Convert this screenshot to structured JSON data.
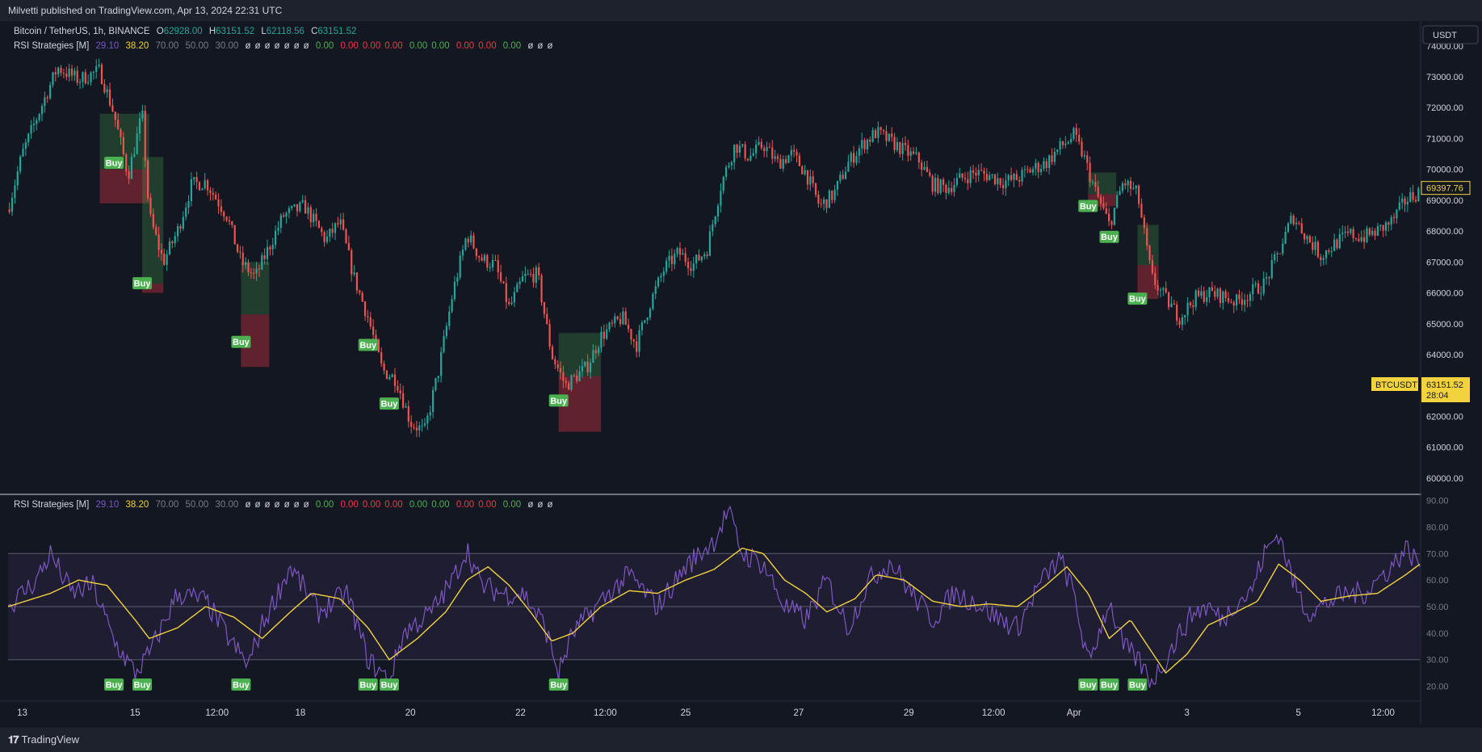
{
  "header": {
    "published": "Milvetti published on TradingView.com, Apr 13, 2024 22:31 UTC"
  },
  "legend": {
    "symbol": "Bitcoin / TetherUS, 1h, BINANCE",
    "open_label": "O",
    "open": "62928.00",
    "high_label": "H",
    "high": "63151.52",
    "low_label": "L",
    "low": "62118.56",
    "close_label": "C",
    "close": "63151.52"
  },
  "indicator": {
    "name": "RSI Strategies [M]",
    "v1": "29.10",
    "v2": "38.20",
    "v3": "70.00",
    "v4": "50.00",
    "v5": "30.00",
    "empty_marks": [
      "ø",
      "ø",
      "ø",
      "ø",
      "ø",
      "ø",
      "ø"
    ],
    "g1": "0.00",
    "reds": [
      "0.00",
      "0.00",
      "0.00"
    ],
    "greens": [
      "0.00",
      "0.00"
    ],
    "reds2": [
      "0.00",
      "0.00"
    ],
    "g2": "0.00",
    "tail_marks": [
      "ø",
      "ø",
      "ø"
    ]
  },
  "colors": {
    "up": "#26a69a",
    "down": "#ef5350",
    "rsi": "#7e57c2",
    "ma": "#f2d23d",
    "buy": "#4caf50",
    "price_tag": "#f2d23d"
  },
  "price_axis": {
    "currency": "USDT",
    "labels": [
      "74000.00",
      "73000.00",
      "72000.00",
      "71000.00",
      "70000.00",
      "69000.00",
      "68000.00",
      "67000.00",
      "66000.00",
      "65000.00",
      "64000.00",
      "63000.00",
      "62000.00",
      "61000.00",
      "60000.00"
    ],
    "last_high_tag": "69397.76",
    "symbol_tag": "BTCUSDT",
    "current_price": "63151.52",
    "countdown": "28:04"
  },
  "rsi_axis": {
    "labels": [
      "90.00",
      "80.00",
      "70.00",
      "60.00",
      "50.00",
      "40.00",
      "30.00",
      "20.00"
    ]
  },
  "time_axis": {
    "labels": [
      "13",
      "15",
      "12:00",
      "18",
      "20",
      "22",
      "12:00",
      "25",
      "27",
      "29",
      "12:00",
      "Apr",
      "3",
      "5",
      "12:00"
    ]
  },
  "buy_label": "Buy",
  "footer": {
    "brand": "TradingView"
  },
  "chart_data": {
    "type": "candlestick",
    "symbol": "BTCUSDT",
    "interval": "1h",
    "price_range": [
      59500,
      74700
    ],
    "price_anchors": [
      {
        "x": 0.0,
        "price": 68700
      },
      {
        "x": 0.01,
        "price": 70500
      },
      {
        "x": 0.025,
        "price": 72200
      },
      {
        "x": 0.035,
        "price": 73300
      },
      {
        "x": 0.05,
        "price": 72900
      },
      {
        "x": 0.065,
        "price": 73200
      },
      {
        "x": 0.075,
        "price": 71800
      },
      {
        "x": 0.085,
        "price": 69800
      },
      {
        "x": 0.095,
        "price": 71800
      },
      {
        "x": 0.1,
        "price": 68500
      },
      {
        "x": 0.11,
        "price": 67000
      },
      {
        "x": 0.12,
        "price": 68000
      },
      {
        "x": 0.13,
        "price": 69500
      },
      {
        "x": 0.14,
        "price": 69600
      },
      {
        "x": 0.155,
        "price": 68500
      },
      {
        "x": 0.165,
        "price": 67000
      },
      {
        "x": 0.175,
        "price": 66500
      },
      {
        "x": 0.185,
        "price": 67500
      },
      {
        "x": 0.195,
        "price": 68500
      },
      {
        "x": 0.21,
        "price": 68800
      },
      {
        "x": 0.225,
        "price": 67700
      },
      {
        "x": 0.235,
        "price": 68300
      },
      {
        "x": 0.245,
        "price": 66500
      },
      {
        "x": 0.255,
        "price": 65200
      },
      {
        "x": 0.265,
        "price": 63500
      },
      {
        "x": 0.275,
        "price": 63200
      },
      {
        "x": 0.285,
        "price": 61800
      },
      {
        "x": 0.295,
        "price": 61500
      },
      {
        "x": 0.305,
        "price": 63500
      },
      {
        "x": 0.315,
        "price": 66000
      },
      {
        "x": 0.325,
        "price": 67900
      },
      {
        "x": 0.335,
        "price": 67100
      },
      {
        "x": 0.345,
        "price": 66900
      },
      {
        "x": 0.355,
        "price": 65500
      },
      {
        "x": 0.365,
        "price": 66500
      },
      {
        "x": 0.375,
        "price": 66600
      },
      {
        "x": 0.385,
        "price": 64000
      },
      {
        "x": 0.395,
        "price": 63000
      },
      {
        "x": 0.41,
        "price": 63600
      },
      {
        "x": 0.42,
        "price": 64600
      },
      {
        "x": 0.435,
        "price": 65200
      },
      {
        "x": 0.445,
        "price": 64300
      },
      {
        "x": 0.455,
        "price": 65700
      },
      {
        "x": 0.465,
        "price": 66800
      },
      {
        "x": 0.475,
        "price": 67300
      },
      {
        "x": 0.485,
        "price": 66900
      },
      {
        "x": 0.495,
        "price": 67400
      },
      {
        "x": 0.505,
        "price": 69500
      },
      {
        "x": 0.515,
        "price": 70800
      },
      {
        "x": 0.525,
        "price": 70400
      },
      {
        "x": 0.535,
        "price": 70800
      },
      {
        "x": 0.545,
        "price": 70200
      },
      {
        "x": 0.555,
        "price": 70500
      },
      {
        "x": 0.565,
        "price": 69900
      },
      {
        "x": 0.575,
        "price": 68800
      },
      {
        "x": 0.585,
        "price": 69200
      },
      {
        "x": 0.595,
        "price": 70200
      },
      {
        "x": 0.605,
        "price": 70800
      },
      {
        "x": 0.615,
        "price": 71200
      },
      {
        "x": 0.625,
        "price": 70900
      },
      {
        "x": 0.635,
        "price": 70600
      },
      {
        "x": 0.645,
        "price": 70300
      },
      {
        "x": 0.655,
        "price": 69500
      },
      {
        "x": 0.665,
        "price": 69400
      },
      {
        "x": 0.675,
        "price": 69700
      },
      {
        "x": 0.685,
        "price": 69900
      },
      {
        "x": 0.695,
        "price": 69800
      },
      {
        "x": 0.705,
        "price": 69600
      },
      {
        "x": 0.715,
        "price": 69700
      },
      {
        "x": 0.725,
        "price": 70000
      },
      {
        "x": 0.735,
        "price": 70200
      },
      {
        "x": 0.745,
        "price": 70700
      },
      {
        "x": 0.755,
        "price": 71100
      },
      {
        "x": 0.762,
        "price": 70400
      },
      {
        "x": 0.77,
        "price": 69300
      },
      {
        "x": 0.78,
        "price": 68200
      },
      {
        "x": 0.79,
        "price": 69600
      },
      {
        "x": 0.8,
        "price": 69200
      },
      {
        "x": 0.81,
        "price": 66500
      },
      {
        "x": 0.82,
        "price": 65800
      },
      {
        "x": 0.83,
        "price": 65200
      },
      {
        "x": 0.84,
        "price": 65800
      },
      {
        "x": 0.85,
        "price": 66000
      },
      {
        "x": 0.86,
        "price": 65900
      },
      {
        "x": 0.87,
        "price": 65700
      },
      {
        "x": 0.88,
        "price": 66000
      },
      {
        "x": 0.89,
        "price": 66300
      },
      {
        "x": 0.9,
        "price": 67300
      },
      {
        "x": 0.91,
        "price": 68500
      },
      {
        "x": 0.92,
        "price": 67800
      },
      {
        "x": 0.93,
        "price": 67200
      },
      {
        "x": 0.94,
        "price": 67600
      },
      {
        "x": 0.95,
        "price": 67900
      },
      {
        "x": 0.96,
        "price": 67800
      },
      {
        "x": 0.97,
        "price": 68000
      },
      {
        "x": 0.98,
        "price": 68300
      },
      {
        "x": 0.99,
        "price": 69000
      },
      {
        "x": 1.0,
        "price": 69300
      }
    ],
    "buy_signals_price": [
      {
        "x": 0.075,
        "price": 70200
      },
      {
        "x": 0.095,
        "price": 66300
      },
      {
        "x": 0.165,
        "price": 64400
      },
      {
        "x": 0.255,
        "price": 64300
      },
      {
        "x": 0.27,
        "price": 62400
      },
      {
        "x": 0.39,
        "price": 62500
      },
      {
        "x": 0.765,
        "price": 68800
      },
      {
        "x": 0.78,
        "price": 67800
      },
      {
        "x": 0.8,
        "price": 65800
      }
    ],
    "position_zones": [
      {
        "x0": 0.065,
        "x1": 0.1,
        "entry": 70000,
        "target": 71800,
        "stop": 68900
      },
      {
        "x0": 0.095,
        "x1": 0.11,
        "entry": 66300,
        "target": 70400,
        "stop": 66000
      },
      {
        "x0": 0.165,
        "x1": 0.185,
        "entry": 65300,
        "target": 67000,
        "stop": 63600
      },
      {
        "x0": 0.39,
        "x1": 0.42,
        "entry": 63300,
        "target": 64700,
        "stop": 61500
      },
      {
        "x0": 0.765,
        "x1": 0.785,
        "entry": 69200,
        "target": 69900,
        "stop": 68800
      },
      {
        "x0": 0.8,
        "x1": 0.815,
        "entry": 66900,
        "target": 68200,
        "stop": 65800
      }
    ],
    "rsi": {
      "range": [
        15,
        92
      ],
      "levels": [
        70,
        50,
        30
      ],
      "rsi_anchors": [
        {
          "x": 0.0,
          "v": 50
        },
        {
          "x": 0.02,
          "v": 60
        },
        {
          "x": 0.03,
          "v": 70
        },
        {
          "x": 0.045,
          "v": 55
        },
        {
          "x": 0.06,
          "v": 58
        },
        {
          "x": 0.075,
          "v": 37
        },
        {
          "x": 0.09,
          "v": 25
        },
        {
          "x": 0.1,
          "v": 32
        },
        {
          "x": 0.12,
          "v": 55
        },
        {
          "x": 0.14,
          "v": 52
        },
        {
          "x": 0.16,
          "v": 35
        },
        {
          "x": 0.17,
          "v": 28
        },
        {
          "x": 0.18,
          "v": 43
        },
        {
          "x": 0.2,
          "v": 65
        },
        {
          "x": 0.22,
          "v": 48
        },
        {
          "x": 0.24,
          "v": 55
        },
        {
          "x": 0.255,
          "v": 30
        },
        {
          "x": 0.27,
          "v": 22
        },
        {
          "x": 0.28,
          "v": 40
        },
        {
          "x": 0.3,
          "v": 48
        },
        {
          "x": 0.315,
          "v": 60
        },
        {
          "x": 0.325,
          "v": 72
        },
        {
          "x": 0.335,
          "v": 58
        },
        {
          "x": 0.35,
          "v": 55
        },
        {
          "x": 0.365,
          "v": 55
        },
        {
          "x": 0.38,
          "v": 43
        },
        {
          "x": 0.39,
          "v": 25
        },
        {
          "x": 0.4,
          "v": 40
        },
        {
          "x": 0.42,
          "v": 52
        },
        {
          "x": 0.44,
          "v": 62
        },
        {
          "x": 0.46,
          "v": 50
        },
        {
          "x": 0.48,
          "v": 65
        },
        {
          "x": 0.5,
          "v": 75
        },
        {
          "x": 0.51,
          "v": 86
        },
        {
          "x": 0.52,
          "v": 70
        },
        {
          "x": 0.535,
          "v": 66
        },
        {
          "x": 0.55,
          "v": 50
        },
        {
          "x": 0.565,
          "v": 45
        },
        {
          "x": 0.58,
          "v": 60
        },
        {
          "x": 0.595,
          "v": 42
        },
        {
          "x": 0.61,
          "v": 60
        },
        {
          "x": 0.625,
          "v": 67
        },
        {
          "x": 0.64,
          "v": 55
        },
        {
          "x": 0.655,
          "v": 45
        },
        {
          "x": 0.67,
          "v": 55
        },
        {
          "x": 0.685,
          "v": 52
        },
        {
          "x": 0.7,
          "v": 46
        },
        {
          "x": 0.715,
          "v": 42
        },
        {
          "x": 0.73,
          "v": 58
        },
        {
          "x": 0.745,
          "v": 68
        },
        {
          "x": 0.755,
          "v": 55
        },
        {
          "x": 0.765,
          "v": 28
        },
        {
          "x": 0.78,
          "v": 52
        },
        {
          "x": 0.79,
          "v": 35
        },
        {
          "x": 0.8,
          "v": 30
        },
        {
          "x": 0.81,
          "v": 22
        },
        {
          "x": 0.82,
          "v": 30
        },
        {
          "x": 0.83,
          "v": 40
        },
        {
          "x": 0.84,
          "v": 48
        },
        {
          "x": 0.85,
          "v": 50
        },
        {
          "x": 0.86,
          "v": 45
        },
        {
          "x": 0.87,
          "v": 52
        },
        {
          "x": 0.88,
          "v": 55
        },
        {
          "x": 0.89,
          "v": 70
        },
        {
          "x": 0.9,
          "v": 78
        },
        {
          "x": 0.91,
          "v": 60
        },
        {
          "x": 0.92,
          "v": 48
        },
        {
          "x": 0.93,
          "v": 50
        },
        {
          "x": 0.94,
          "v": 53
        },
        {
          "x": 0.95,
          "v": 55
        },
        {
          "x": 0.96,
          "v": 55
        },
        {
          "x": 0.97,
          "v": 60
        },
        {
          "x": 0.98,
          "v": 65
        },
        {
          "x": 0.99,
          "v": 72
        },
        {
          "x": 1.0,
          "v": 66
        }
      ],
      "ma_anchors": [
        {
          "x": 0.0,
          "v": 50
        },
        {
          "x": 0.03,
          "v": 55
        },
        {
          "x": 0.05,
          "v": 60
        },
        {
          "x": 0.07,
          "v": 58
        },
        {
          "x": 0.09,
          "v": 45
        },
        {
          "x": 0.1,
          "v": 38
        },
        {
          "x": 0.12,
          "v": 42
        },
        {
          "x": 0.14,
          "v": 50
        },
        {
          "x": 0.16,
          "v": 46
        },
        {
          "x": 0.18,
          "v": 38
        },
        {
          "x": 0.2,
          "v": 48
        },
        {
          "x": 0.215,
          "v": 55
        },
        {
          "x": 0.235,
          "v": 53
        },
        {
          "x": 0.255,
          "v": 42
        },
        {
          "x": 0.27,
          "v": 30
        },
        {
          "x": 0.29,
          "v": 38
        },
        {
          "x": 0.31,
          "v": 48
        },
        {
          "x": 0.325,
          "v": 60
        },
        {
          "x": 0.34,
          "v": 65
        },
        {
          "x": 0.355,
          "v": 58
        },
        {
          "x": 0.37,
          "v": 48
        },
        {
          "x": 0.385,
          "v": 37
        },
        {
          "x": 0.4,
          "v": 40
        },
        {
          "x": 0.42,
          "v": 50
        },
        {
          "x": 0.44,
          "v": 56
        },
        {
          "x": 0.46,
          "v": 55
        },
        {
          "x": 0.48,
          "v": 60
        },
        {
          "x": 0.5,
          "v": 64
        },
        {
          "x": 0.52,
          "v": 72
        },
        {
          "x": 0.535,
          "v": 70
        },
        {
          "x": 0.55,
          "v": 60
        },
        {
          "x": 0.565,
          "v": 55
        },
        {
          "x": 0.58,
          "v": 48
        },
        {
          "x": 0.6,
          "v": 53
        },
        {
          "x": 0.615,
          "v": 62
        },
        {
          "x": 0.635,
          "v": 60
        },
        {
          "x": 0.655,
          "v": 52
        },
        {
          "x": 0.675,
          "v": 50
        },
        {
          "x": 0.695,
          "v": 51
        },
        {
          "x": 0.715,
          "v": 50
        },
        {
          "x": 0.735,
          "v": 58
        },
        {
          "x": 0.75,
          "v": 65
        },
        {
          "x": 0.765,
          "v": 55
        },
        {
          "x": 0.78,
          "v": 38
        },
        {
          "x": 0.795,
          "v": 45
        },
        {
          "x": 0.81,
          "v": 33
        },
        {
          "x": 0.82,
          "v": 25
        },
        {
          "x": 0.835,
          "v": 32
        },
        {
          "x": 0.85,
          "v": 43
        },
        {
          "x": 0.87,
          "v": 48
        },
        {
          "x": 0.885,
          "v": 52
        },
        {
          "x": 0.9,
          "v": 66
        },
        {
          "x": 0.915,
          "v": 60
        },
        {
          "x": 0.93,
          "v": 52
        },
        {
          "x": 0.95,
          "v": 54
        },
        {
          "x": 0.97,
          "v": 55
        },
        {
          "x": 0.99,
          "v": 62
        },
        {
          "x": 1.0,
          "v": 66
        }
      ],
      "buy_x": [
        0.075,
        0.095,
        0.165,
        0.255,
        0.27,
        0.39,
        0.765,
        0.78,
        0.8
      ]
    }
  }
}
